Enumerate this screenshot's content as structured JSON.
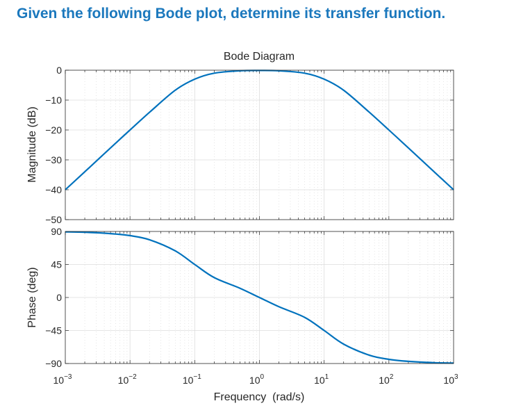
{
  "question": "Given the following Bode plot, determine its transfer function.",
  "chart_data": [
    {
      "type": "line",
      "title": "Bode Diagram",
      "xlabel": "",
      "ylabel": "Magnitude (dB)",
      "x_scale": "log",
      "xlim": [
        0.001,
        1000
      ],
      "ylim": [
        -50,
        0
      ],
      "yticks": [
        "0",
        "-10",
        "-20",
        "-30",
        "-40",
        "-50"
      ],
      "grid": true,
      "color": "#0072bd",
      "x": [
        0.001,
        0.002,
        0.005,
        0.01,
        0.02,
        0.05,
        0.1,
        0.2,
        0.5,
        1,
        2,
        5,
        10,
        20,
        50,
        100,
        200,
        500,
        1000
      ],
      "values": [
        -40,
        -34,
        -26,
        -20,
        -14.1,
        -6.7,
        -3,
        -1,
        -0.2,
        -0.1,
        -0.2,
        -1,
        -3,
        -6.7,
        -14.1,
        -20,
        -26,
        -34,
        -40
      ]
    },
    {
      "type": "line",
      "title": "",
      "xlabel": "Frequency  (rad/s)",
      "ylabel": "Phase (deg)",
      "x_scale": "log",
      "xlim": [
        0.001,
        1000
      ],
      "ylim": [
        -90,
        90
      ],
      "yticks": [
        "90",
        "45",
        "0",
        "-45",
        "-90"
      ],
      "xticks": [
        {
          "base": "10",
          "exp": "-3"
        },
        {
          "base": "10",
          "exp": "-2"
        },
        {
          "base": "10",
          "exp": "-1"
        },
        {
          "base": "10",
          "exp": "0"
        },
        {
          "base": "10",
          "exp": "1"
        },
        {
          "base": "10",
          "exp": "2"
        },
        {
          "base": "10",
          "exp": "3"
        }
      ],
      "grid": true,
      "color": "#0072bd",
      "x": [
        0.001,
        0.002,
        0.005,
        0.01,
        0.02,
        0.05,
        0.1,
        0.2,
        0.5,
        1,
        2,
        5,
        10,
        20,
        50,
        100,
        200,
        500,
        1000
      ],
      "values": [
        89.4,
        88.9,
        87.1,
        84.3,
        78.7,
        63.6,
        45,
        27.1,
        12.6,
        0,
        -12.6,
        -27.1,
        -45,
        -63.6,
        -78.7,
        -84.3,
        -87.1,
        -88.9,
        -89.4
      ]
    }
  ]
}
